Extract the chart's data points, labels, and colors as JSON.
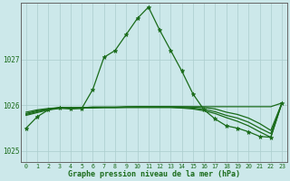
{
  "xlabel": "Graphe pression niveau de la mer (hPa)",
  "bg_color": "#cce8ea",
  "grid_color": "#aacccc",
  "line_color": "#1a6b1a",
  "text_color": "#1a6b1a",
  "xlim": [
    -0.5,
    23.5
  ],
  "ylim": [
    1024.75,
    1028.25
  ],
  "yticks": [
    1025,
    1026,
    1027
  ],
  "xticks": [
    0,
    1,
    2,
    3,
    4,
    5,
    6,
    7,
    8,
    9,
    10,
    11,
    12,
    13,
    14,
    15,
    16,
    17,
    18,
    19,
    20,
    21,
    22,
    23
  ],
  "series": [
    {
      "x": [
        0,
        1,
        2,
        3,
        4,
        5,
        6,
        7,
        8,
        9,
        10,
        11,
        12,
        13,
        14,
        15,
        16,
        17,
        18,
        19,
        20,
        21,
        22,
        23
      ],
      "y": [
        1025.5,
        1025.75,
        1025.9,
        1025.95,
        1025.92,
        1025.93,
        1026.35,
        1027.05,
        1027.2,
        1027.55,
        1027.9,
        1028.15,
        1027.65,
        1027.2,
        1026.75,
        1026.25,
        1025.9,
        1025.7,
        1025.55,
        1025.5,
        1025.42,
        1025.32,
        1025.3,
        1026.05
      ],
      "marker": "*",
      "ms": 3.5
    },
    {
      "x": [
        0,
        1,
        2,
        3,
        4,
        5,
        6,
        7,
        8,
        9,
        10,
        11,
        12,
        13,
        14,
        15,
        16,
        17,
        18,
        19,
        20,
        21,
        22,
        23
      ],
      "y": [
        1025.85,
        1025.9,
        1025.93,
        1025.95,
        1025.95,
        1025.95,
        1025.96,
        1025.96,
        1025.96,
        1025.96,
        1025.97,
        1025.97,
        1025.97,
        1025.97,
        1025.97,
        1025.97,
        1025.97,
        1025.97,
        1025.97,
        1025.97,
        1025.97,
        1025.97,
        1025.97,
        1026.05
      ],
      "marker": null,
      "ms": 0
    },
    {
      "x": [
        0,
        1,
        2,
        3,
        4,
        5,
        6,
        7,
        8,
        9,
        10,
        11,
        12,
        13,
        14,
        15,
        16,
        17,
        18,
        19,
        20,
        21,
        22,
        23
      ],
      "y": [
        1025.82,
        1025.88,
        1025.92,
        1025.95,
        1025.95,
        1025.95,
        1025.96,
        1025.96,
        1025.96,
        1025.97,
        1025.97,
        1025.97,
        1025.97,
        1025.97,
        1025.97,
        1025.96,
        1025.95,
        1025.92,
        1025.85,
        1025.8,
        1025.72,
        1025.6,
        1025.45,
        1026.05
      ],
      "marker": null,
      "ms": 0
    },
    {
      "x": [
        0,
        1,
        2,
        3,
        4,
        5,
        6,
        7,
        8,
        9,
        10,
        11,
        12,
        13,
        14,
        15,
        16,
        17,
        18,
        19,
        20,
        21,
        22,
        23
      ],
      "y": [
        1025.8,
        1025.86,
        1025.91,
        1025.94,
        1025.94,
        1025.95,
        1025.95,
        1025.95,
        1025.95,
        1025.96,
        1025.96,
        1025.96,
        1025.96,
        1025.96,
        1025.95,
        1025.94,
        1025.91,
        1025.86,
        1025.78,
        1025.72,
        1025.63,
        1025.5,
        1025.38,
        1026.05
      ],
      "marker": null,
      "ms": 0
    },
    {
      "x": [
        0,
        1,
        2,
        3,
        4,
        5,
        6,
        7,
        8,
        9,
        10,
        11,
        12,
        13,
        14,
        15,
        16,
        17,
        18,
        19,
        20,
        21,
        22,
        23
      ],
      "y": [
        1025.78,
        1025.84,
        1025.9,
        1025.93,
        1025.93,
        1025.94,
        1025.94,
        1025.95,
        1025.95,
        1025.95,
        1025.95,
        1025.95,
        1025.95,
        1025.95,
        1025.94,
        1025.92,
        1025.88,
        1025.82,
        1025.73,
        1025.65,
        1025.55,
        1025.42,
        1025.3,
        1026.05
      ],
      "marker": null,
      "ms": 0
    }
  ]
}
